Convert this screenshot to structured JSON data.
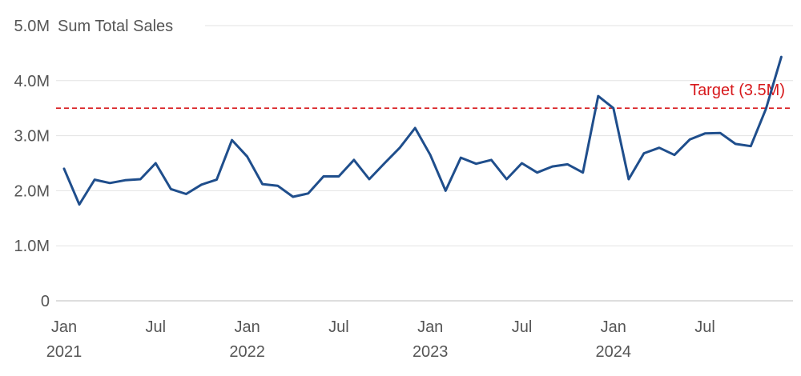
{
  "chart_data": {
    "type": "line",
    "title": "",
    "ylabel": "Sum Total Sales",
    "xlabel": "",
    "ylim": [
      0,
      5000000
    ],
    "yticks": [
      {
        "value": 0,
        "label": "0"
      },
      {
        "value": 1000000,
        "label": "1.0M"
      },
      {
        "value": 2000000,
        "label": "2.0M"
      },
      {
        "value": 3000000,
        "label": "3.0M"
      },
      {
        "value": 4000000,
        "label": "4.0M"
      },
      {
        "value": 5000000,
        "label": "5.0M"
      }
    ],
    "xticks": [
      {
        "date": "2021-01",
        "month": "Jan",
        "year": "2021"
      },
      {
        "date": "2021-07",
        "month": "Jul",
        "year": ""
      },
      {
        "date": "2022-01",
        "month": "Jan",
        "year": "2022"
      },
      {
        "date": "2022-07",
        "month": "Jul",
        "year": ""
      },
      {
        "date": "2023-01",
        "month": "Jan",
        "year": "2023"
      },
      {
        "date": "2023-07",
        "month": "Jul",
        "year": ""
      },
      {
        "date": "2024-01",
        "month": "Jan",
        "year": "2024"
      },
      {
        "date": "2024-07",
        "month": "Jul",
        "year": ""
      }
    ],
    "grid": true,
    "series": [
      {
        "color": "#1f4e8c",
        "x": [
          "2021-01",
          "2021-02",
          "2021-03",
          "2021-04",
          "2021-05",
          "2021-06",
          "2021-07",
          "2021-08",
          "2021-09",
          "2021-10",
          "2021-11",
          "2021-12",
          "2022-01",
          "2022-02",
          "2022-03",
          "2022-04",
          "2022-05",
          "2022-06",
          "2022-07",
          "2022-08",
          "2022-09",
          "2022-10",
          "2022-11",
          "2022-12",
          "2023-01",
          "2023-02",
          "2023-03",
          "2023-04",
          "2023-05",
          "2023-06",
          "2023-07",
          "2023-08",
          "2023-09",
          "2023-10",
          "2023-11",
          "2023-12",
          "2024-01",
          "2024-02",
          "2024-03",
          "2024-04",
          "2024-05",
          "2024-06",
          "2024-07",
          "2024-08",
          "2024-09",
          "2024-10",
          "2024-11",
          "2024-12"
        ],
        "values": [
          2400000,
          1750000,
          2200000,
          2140000,
          2190000,
          2210000,
          2500000,
          2030000,
          1940000,
          2110000,
          2200000,
          2920000,
          2620000,
          2120000,
          2090000,
          1890000,
          1950000,
          2260000,
          2260000,
          2560000,
          2210000,
          2500000,
          2780000,
          3140000,
          2650000,
          2000000,
          2600000,
          2490000,
          2560000,
          2210000,
          2500000,
          2330000,
          2440000,
          2480000,
          2330000,
          3720000,
          3500000,
          2210000,
          2680000,
          2780000,
          2650000,
          2930000,
          3040000,
          3050000,
          2850000,
          2810000,
          3490000,
          4430000
        ]
      }
    ],
    "target": {
      "value": 3500000,
      "label": "Target (3.5M)",
      "color": "#d7191c"
    }
  }
}
